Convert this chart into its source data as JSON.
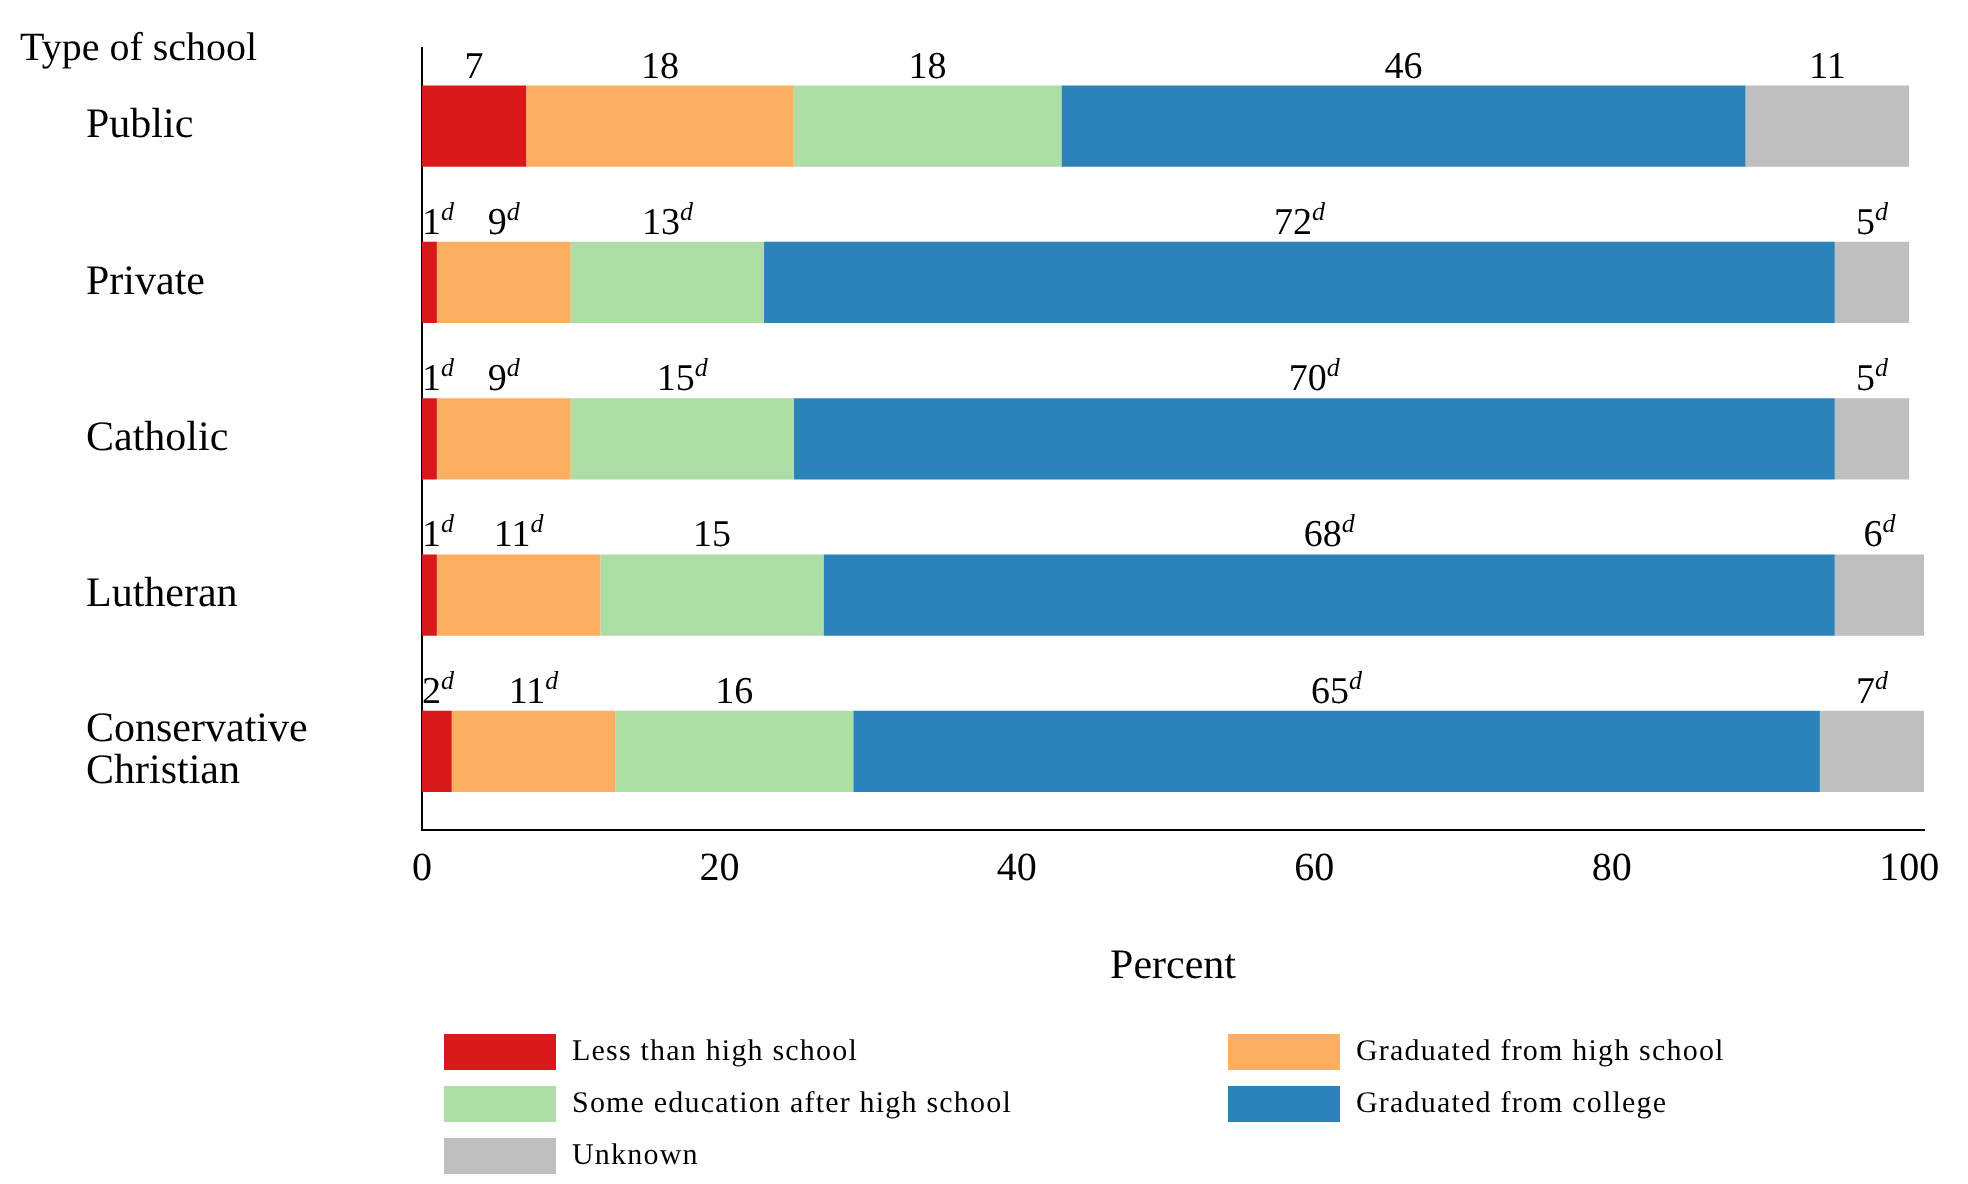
{
  "chart_data": {
    "type": "bar",
    "orientation": "horizontal",
    "stacked": true,
    "ylabel": "Type of school",
    "xlabel": "Percent",
    "categories": [
      "Public",
      "Private",
      "Catholic",
      "Lutheran",
      "Conservative Christian"
    ],
    "xlim": [
      0,
      101
    ],
    "xticks": [
      0,
      20,
      40,
      60,
      80,
      100
    ],
    "grid": false,
    "legend": "bottom",
    "series": [
      {
        "name": "Less than high school",
        "color": "#d7191c",
        "values": [
          7,
          1,
          1,
          1,
          2
        ],
        "value_labels": [
          "7",
          "1$^{d}$",
          "1$^{d}$",
          "1$^{d}$",
          "2$^{d}$"
        ]
      },
      {
        "name": "Graduated from high school",
        "color": "#fdae61",
        "values": [
          18,
          9,
          9,
          11,
          11
        ],
        "value_labels": [
          "18",
          "9$^{d}$",
          "9$^{d}$",
          "11$^{d}$",
          "11$^{d}$"
        ]
      },
      {
        "name": "Some education after high school",
        "color": "#abdda4",
        "values": [
          18,
          13,
          15,
          15,
          16
        ],
        "value_labels": [
          "18",
          "13$^{d}$",
          "15$^{d}$",
          "15",
          "16"
        ]
      },
      {
        "name": "Graduated from college",
        "color": "#2b83ba",
        "values": [
          46,
          72,
          70,
          68,
          65
        ],
        "value_labels": [
          "46",
          "72$^{d}$",
          "70$^{d}$",
          "68$^{d}$",
          "65$^{d}$"
        ]
      },
      {
        "name": "Unknown",
        "color": "#bfbfbf",
        "values": [
          11,
          5,
          5,
          6,
          7
        ],
        "value_labels": [
          "11",
          "5$^{d}$",
          "5$^{d}$",
          "6$^{d}$",
          "7$^{d}$"
        ]
      }
    ]
  }
}
